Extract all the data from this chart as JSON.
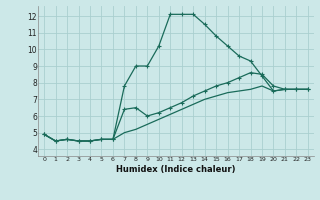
{
  "xlabel": "Humidex (Indice chaleur)",
  "ylabel": "",
  "xlim": [
    -0.5,
    23.5
  ],
  "ylim": [
    3.6,
    12.6
  ],
  "xticks": [
    0,
    1,
    2,
    3,
    4,
    5,
    6,
    7,
    8,
    9,
    10,
    11,
    12,
    13,
    14,
    15,
    16,
    17,
    18,
    19,
    20,
    21,
    22,
    23
  ],
  "yticks": [
    4,
    5,
    6,
    7,
    8,
    9,
    10,
    11,
    12
  ],
  "background_color": "#cce8e8",
  "grid_color": "#aacfcf",
  "line_color": "#1a6b5a",
  "line1_x": [
    0,
    1,
    2,
    3,
    4,
    5,
    6,
    7,
    8,
    9,
    10,
    11,
    12,
    13,
    14,
    15,
    16,
    17,
    18,
    19,
    20,
    21,
    22,
    23
  ],
  "line1_y": [
    4.9,
    4.5,
    4.6,
    4.5,
    4.5,
    4.6,
    4.6,
    7.8,
    9.0,
    9.0,
    10.2,
    12.1,
    12.1,
    12.1,
    11.5,
    10.8,
    10.2,
    9.6,
    9.3,
    8.4,
    7.5,
    7.6,
    7.6,
    7.6
  ],
  "line2_x": [
    0,
    1,
    2,
    3,
    4,
    5,
    6,
    7,
    8,
    9,
    10,
    11,
    12,
    13,
    14,
    15,
    16,
    17,
    18,
    19,
    20,
    21,
    22,
    23
  ],
  "line2_y": [
    4.9,
    4.5,
    4.6,
    4.5,
    4.5,
    4.6,
    4.6,
    6.4,
    6.5,
    6.0,
    6.2,
    6.5,
    6.8,
    7.2,
    7.5,
    7.8,
    8.0,
    8.3,
    8.6,
    8.5,
    7.8,
    7.6,
    7.6,
    7.6
  ],
  "line3_x": [
    0,
    1,
    2,
    3,
    4,
    5,
    6,
    7,
    8,
    9,
    10,
    11,
    12,
    13,
    14,
    15,
    16,
    17,
    18,
    19,
    20,
    21,
    22,
    23
  ],
  "line3_y": [
    4.9,
    4.5,
    4.6,
    4.5,
    4.5,
    4.6,
    4.6,
    5.0,
    5.2,
    5.5,
    5.8,
    6.1,
    6.4,
    6.7,
    7.0,
    7.2,
    7.4,
    7.5,
    7.6,
    7.8,
    7.5,
    7.6,
    7.6,
    7.6
  ]
}
